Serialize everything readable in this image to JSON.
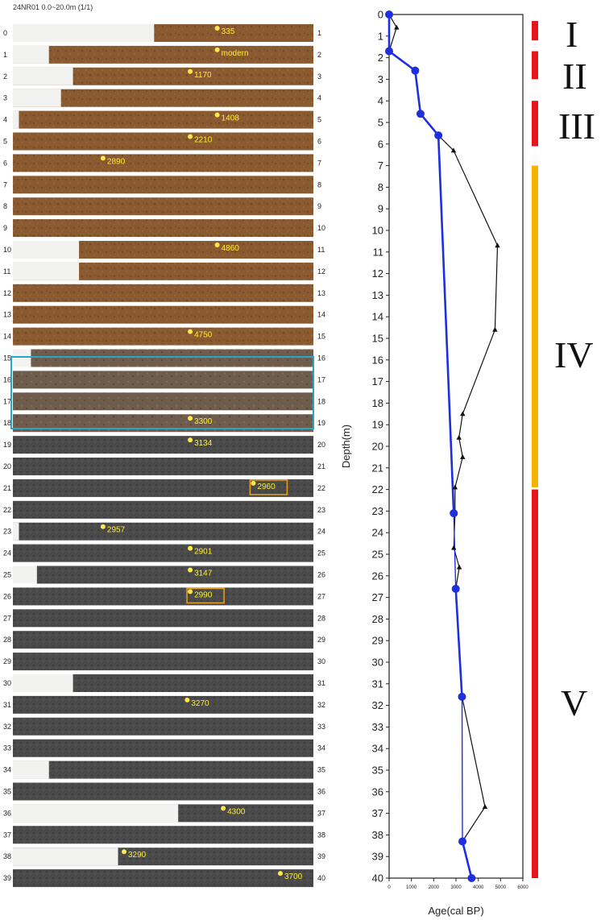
{
  "core": {
    "title": "24NR01  0.0~20.0m (1/1)",
    "rows": [
      {
        "top": "0",
        "bottom": "1",
        "tone": "brown",
        "left_white": 0.47
      },
      {
        "top": "1",
        "bottom": "2",
        "tone": "brown",
        "left_white": 0.12
      },
      {
        "top": "2",
        "bottom": "3",
        "tone": "brown",
        "left_white": 0.2
      },
      {
        "top": "3",
        "bottom": "4",
        "tone": "brown",
        "left_white": 0.16
      },
      {
        "top": "4",
        "bottom": "5",
        "tone": "brown",
        "left_white": 0.02
      },
      {
        "top": "5",
        "bottom": "6",
        "tone": "brown",
        "left_white": 0.0
      },
      {
        "top": "6",
        "bottom": "7",
        "tone": "brown",
        "left_white": 0.0
      },
      {
        "top": "7",
        "bottom": "8",
        "tone": "brown",
        "left_white": 0.0
      },
      {
        "top": "8",
        "bottom": "9",
        "tone": "brown",
        "left_white": 0.0
      },
      {
        "top": "9",
        "bottom": "10",
        "tone": "brown",
        "left_white": 0.0
      },
      {
        "top": "10",
        "bottom": "11",
        "tone": "brown",
        "left_white": 0.22
      },
      {
        "top": "11",
        "bottom": "12",
        "tone": "brown",
        "left_white": 0.22
      },
      {
        "top": "12",
        "bottom": "13",
        "tone": "brown",
        "left_white": 0.0
      },
      {
        "top": "13",
        "bottom": "14",
        "tone": "brown",
        "left_white": 0.0
      },
      {
        "top": "14",
        "bottom": "15",
        "tone": "brown",
        "left_white": 0.0
      },
      {
        "top": "15",
        "bottom": "16",
        "tone": "mixed",
        "left_white": 0.06
      },
      {
        "top": "16",
        "bottom": "17",
        "tone": "mixed",
        "left_white": 0.0
      },
      {
        "top": "17",
        "bottom": "18",
        "tone": "mixed",
        "left_white": 0.0
      },
      {
        "top": "18",
        "bottom": "19",
        "tone": "mixed",
        "left_white": 0.0
      },
      {
        "top": "19",
        "bottom": "20",
        "tone": "gray",
        "left_white": 0.0
      },
      {
        "top": "20",
        "bottom": "21",
        "tone": "gray",
        "left_white": 0.0
      },
      {
        "top": "21",
        "bottom": "22",
        "tone": "gray",
        "left_white": 0.0
      },
      {
        "top": "22",
        "bottom": "23",
        "tone": "gray",
        "left_white": 0.0
      },
      {
        "top": "23",
        "bottom": "24",
        "tone": "gray",
        "left_white": 0.02
      },
      {
        "top": "24",
        "bottom": "25",
        "tone": "gray",
        "left_white": 0.0
      },
      {
        "top": "25",
        "bottom": "26",
        "tone": "gray",
        "left_white": 0.08
      },
      {
        "top": "26",
        "bottom": "27",
        "tone": "gray",
        "left_white": 0.0
      },
      {
        "top": "27",
        "bottom": "28",
        "tone": "gray",
        "left_white": 0.0
      },
      {
        "top": "28",
        "bottom": "29",
        "tone": "gray",
        "left_white": 0.0
      },
      {
        "top": "29",
        "bottom": "30",
        "tone": "gray",
        "left_white": 0.0
      },
      {
        "top": "30",
        "bottom": "31",
        "tone": "gray",
        "left_white": 0.2
      },
      {
        "top": "31",
        "bottom": "32",
        "tone": "gray",
        "left_white": 0.0
      },
      {
        "top": "32",
        "bottom": "33",
        "tone": "gray",
        "left_white": 0.0
      },
      {
        "top": "33",
        "bottom": "34",
        "tone": "gray",
        "left_white": 0.0
      },
      {
        "top": "34",
        "bottom": "35",
        "tone": "gray",
        "left_white": 0.12
      },
      {
        "top": "35",
        "bottom": "36",
        "tone": "gray",
        "left_white": 0.0
      },
      {
        "top": "36",
        "bottom": "37",
        "tone": "gray",
        "left_white": 0.55
      },
      {
        "top": "37",
        "bottom": "38",
        "tone": "gray",
        "left_white": 0.0
      },
      {
        "top": "38",
        "bottom": "39",
        "tone": "gray",
        "left_white": 0.35
      },
      {
        "top": "39",
        "bottom": "40",
        "tone": "gray",
        "left_white": 0.0
      }
    ],
    "age_labels": [
      {
        "depth": 0,
        "text": "335",
        "pos": 0.68,
        "box": false
      },
      {
        "depth": 1,
        "text": "modern",
        "pos": 0.68,
        "box": false
      },
      {
        "depth": 2,
        "text": "1170",
        "pos": 0.59,
        "box": false
      },
      {
        "depth": 4,
        "text": "1408",
        "pos": 0.68,
        "box": false
      },
      {
        "depth": 5,
        "text": "2210",
        "pos": 0.59,
        "box": false
      },
      {
        "depth": 6,
        "text": "2890",
        "pos": 0.3,
        "box": false
      },
      {
        "depth": 10,
        "text": "4860",
        "pos": 0.68,
        "box": false
      },
      {
        "depth": 14,
        "text": "4750",
        "pos": 0.59,
        "box": false
      },
      {
        "depth": 18,
        "text": "3300",
        "pos": 0.59,
        "box": false
      },
      {
        "depth": 19,
        "text": "3134",
        "pos": 0.59,
        "box": false
      },
      {
        "depth": 21,
        "text": "2960",
        "pos": 0.8,
        "box": true
      },
      {
        "depth": 23,
        "text": "2957",
        "pos": 0.3,
        "box": false
      },
      {
        "depth": 24,
        "text": "2901",
        "pos": 0.59,
        "box": false
      },
      {
        "depth": 25,
        "text": "3147",
        "pos": 0.59,
        "box": false
      },
      {
        "depth": 26,
        "text": "2990",
        "pos": 0.59,
        "box": true
      },
      {
        "depth": 31,
        "text": "3270",
        "pos": 0.58,
        "box": false
      },
      {
        "depth": 36,
        "text": "4300",
        "pos": 0.7,
        "box": false
      },
      {
        "depth": 38,
        "text": "3290",
        "pos": 0.37,
        "box": false
      },
      {
        "depth": 39,
        "text": "3700",
        "pos": 0.89,
        "box": false
      }
    ],
    "colors": {
      "brown": "#8a5a30",
      "mixed": "#6e5c4c",
      "gray": "#4a4a4a",
      "label": "#ffee33",
      "dot": "#ffe94a",
      "highlight_box": "#2aa5c8",
      "label_box": "#e8a020"
    }
  },
  "chart_data": {
    "type": "line",
    "title": "",
    "xlabel": "Age(cal BP)",
    "ylabel": "Depth(m)",
    "xlim": [
      0,
      6000
    ],
    "ylim": [
      40,
      0
    ],
    "x_ticks": [
      "0",
      "1000",
      "2000",
      "3000",
      "4000",
      "5000",
      "6000"
    ],
    "y_ticks": [
      "0",
      "1",
      "2",
      "3",
      "4",
      "5",
      "6",
      "7",
      "8",
      "9",
      "10",
      "11",
      "12",
      "13",
      "14",
      "15",
      "16",
      "17",
      "18",
      "19",
      "20",
      "21",
      "22",
      "23",
      "24",
      "25",
      "26",
      "27",
      "28",
      "29",
      "30",
      "31",
      "32",
      "33",
      "34",
      "35",
      "36",
      "37",
      "38",
      "39",
      "40"
    ],
    "series": [
      {
        "kind": "measured",
        "color": "#111111",
        "marker": "triangle",
        "points": [
          [
            0,
            0
          ],
          [
            335,
            0.6
          ],
          [
            0,
            1.7
          ],
          [
            1170,
            2.6
          ],
          [
            1408,
            4.6
          ],
          [
            2210,
            5.6
          ],
          [
            2890,
            6.3
          ],
          [
            4860,
            10.7
          ],
          [
            4750,
            14.6
          ],
          [
            3300,
            18.5
          ],
          [
            3134,
            19.6
          ],
          [
            3300,
            20.5
          ],
          [
            2960,
            21.9
          ],
          [
            2957,
            23.1
          ],
          [
            2901,
            24.7
          ],
          [
            3147,
            25.6
          ],
          [
            2990,
            26.6
          ],
          [
            3270,
            31.6
          ],
          [
            4300,
            36.7
          ],
          [
            3290,
            38.3
          ],
          [
            3700,
            40
          ]
        ]
      },
      {
        "kind": "model",
        "color": "#1e2fe0",
        "marker": "circle",
        "points": [
          [
            0,
            0
          ],
          [
            0,
            1.7
          ],
          [
            1170,
            2.6
          ],
          [
            1408,
            4.6
          ],
          [
            2210,
            5.6
          ],
          [
            2900,
            23.1
          ],
          [
            2990,
            26.6
          ],
          [
            3270,
            31.6
          ],
          [
            3290,
            38.3
          ],
          [
            3700,
            40
          ]
        ],
        "filled_markers": [
          [
            0,
            0
          ],
          [
            0,
            1.7
          ],
          [
            1170,
            2.6
          ],
          [
            1408,
            4.6
          ],
          [
            2210,
            5.6
          ],
          [
            2900,
            23.1
          ],
          [
            2990,
            26.6
          ],
          [
            3270,
            31.6
          ],
          [
            3290,
            38.3
          ],
          [
            3700,
            40
          ]
        ]
      }
    ],
    "zones": [
      {
        "label": "I",
        "from": 0.3,
        "to": 1.2,
        "color": "#e8141c"
      },
      {
        "label": "II",
        "from": 1.7,
        "to": 3.0,
        "color": "#e8141c"
      },
      {
        "label": "III",
        "from": 4.0,
        "to": 6.1,
        "color": "#e8141c"
      },
      {
        "label": "IV",
        "from": 7.0,
        "to": 21.9,
        "color": "#f5b400"
      },
      {
        "label": "V",
        "from": 22.0,
        "to": 40.0,
        "color": "#e8141c"
      }
    ]
  }
}
